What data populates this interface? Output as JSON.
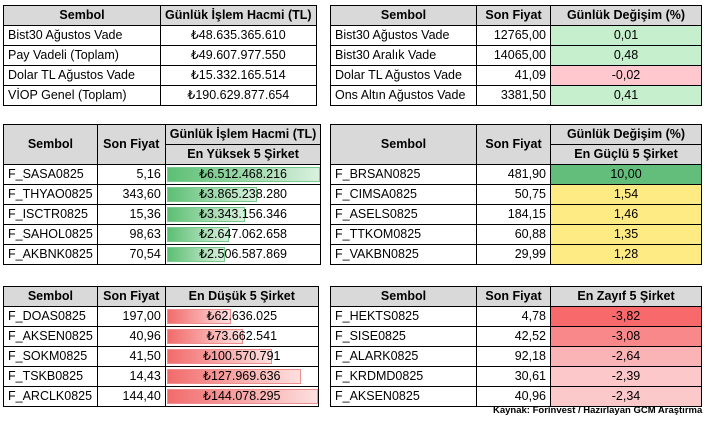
{
  "top_left": {
    "headers": [
      "Sembol",
      "Günlük İşlem Hacmi (TL)"
    ],
    "rows": [
      {
        "name": "Bist30 Ağustos Vade",
        "value": "₺48.635.365.610"
      },
      {
        "name": "Pay Vadeli (Toplam)",
        "value": "₺49.607.977.550"
      },
      {
        "name": "Dolar TL Ağustos Vade",
        "value": "₺15.332.165.514"
      },
      {
        "name": "VİOP Genel (Toplam)",
        "value": "₺190.629.877.654"
      }
    ]
  },
  "top_right": {
    "headers": [
      "Sembol",
      "Son Fiyat",
      "Günlük Değişim (%)"
    ],
    "rows": [
      {
        "name": "Bist30 Ağustos Vade",
        "price": "12765,00",
        "change": "0,01"
      },
      {
        "name": "Bist30 Aralık Vade",
        "price": "14065,00",
        "change": "0,48"
      },
      {
        "name": "Dolar TL Ağustos Vade",
        "price": "41,09",
        "change": "-0,02"
      },
      {
        "name": "Ons Altın Ağustos Vade",
        "price": "3381,50",
        "change": "0,41"
      }
    ]
  },
  "volume_top5": {
    "headers": [
      "Sembol",
      "Son Fiyat",
      "Günlük İşlem Hacmi (TL)"
    ],
    "subheader": "En Yüksek 5 Şirket",
    "rows": [
      {
        "name": "F_SASA0825",
        "price": "5,16",
        "volume": "₺6.512.468.216",
        "fill": 1.0
      },
      {
        "name": "F_THYAO0825",
        "price": "343,60",
        "volume": "₺3.865.238.280",
        "fill": 0.59
      },
      {
        "name": "F_ISCTR0825",
        "price": "15,36",
        "volume": "₺3.343.156.346",
        "fill": 0.51
      },
      {
        "name": "F_SAHOL0825",
        "price": "98,63",
        "volume": "₺2.647.062.658",
        "fill": 0.41
      },
      {
        "name": "F_AKBNK0825",
        "price": "70,54",
        "volume": "₺2.506.587.869",
        "fill": 0.38
      }
    ]
  },
  "change_top5": {
    "headers": [
      "Sembol",
      "Son Fiyat",
      "Günlük Değişim (%)"
    ],
    "subheader": "En Güçlü 5 Şirket",
    "rows": [
      {
        "name": "F_BRSAN0825",
        "price": "481,90",
        "change": "10,00"
      },
      {
        "name": "F_CIMSA0825",
        "price": "50,75",
        "change": "1,54"
      },
      {
        "name": "F_ASELS0825",
        "price": "184,15",
        "change": "1,46"
      },
      {
        "name": "F_TTKOM0825",
        "price": "60,88",
        "change": "1,35"
      },
      {
        "name": "F_VAKBN0825",
        "price": "29,99",
        "change": "1,28"
      }
    ]
  },
  "volume_bottom5": {
    "headers": [
      "Sembol",
      "Son Fiyat",
      "En Düşük 5 Şirket"
    ],
    "rows": [
      {
        "name": "F_DOAS0825",
        "price": "197,00",
        "volume": "₺62.636.025",
        "fill": 0.43
      },
      {
        "name": "F_AKSEN0825",
        "price": "40,96",
        "volume": "₺73.662.541",
        "fill": 0.51
      },
      {
        "name": "F_SOKM0825",
        "price": "41,50",
        "volume": "₺100.570.791",
        "fill": 0.7
      },
      {
        "name": "F_TSKB0825",
        "price": "14,43",
        "volume": "₺127.969.636",
        "fill": 0.89
      },
      {
        "name": "F_ARCLK0825",
        "price": "144,40",
        "volume": "₺144.078.295",
        "fill": 1.0
      }
    ]
  },
  "change_bottom5": {
    "headers": [
      "Sembol",
      "Son Fiyat",
      "En Zayıf 5 Şirket"
    ],
    "rows": [
      {
        "name": "F_HEKTS0825",
        "price": "4,78",
        "change": "-3,82"
      },
      {
        "name": "F_SISE0825",
        "price": "42,52",
        "change": "-3,08"
      },
      {
        "name": "F_ALARK0825",
        "price": "92,18",
        "change": "-2,64"
      },
      {
        "name": "F_KRDMD0825",
        "price": "30,61",
        "change": "-2,39"
      },
      {
        "name": "F_AKSEN0825",
        "price": "40,96",
        "change": "-2,34"
      }
    ]
  },
  "footer": "Kaynak: Forinvest / Hazırlayan GCM Araştırma",
  "colors": {
    "green": "#63be7b",
    "light_green": "#c6efce",
    "yellow": "#ffeb84",
    "light_red": "#ffc7ce",
    "red": "#f8696b",
    "header_gray": "#d9d9d9"
  }
}
